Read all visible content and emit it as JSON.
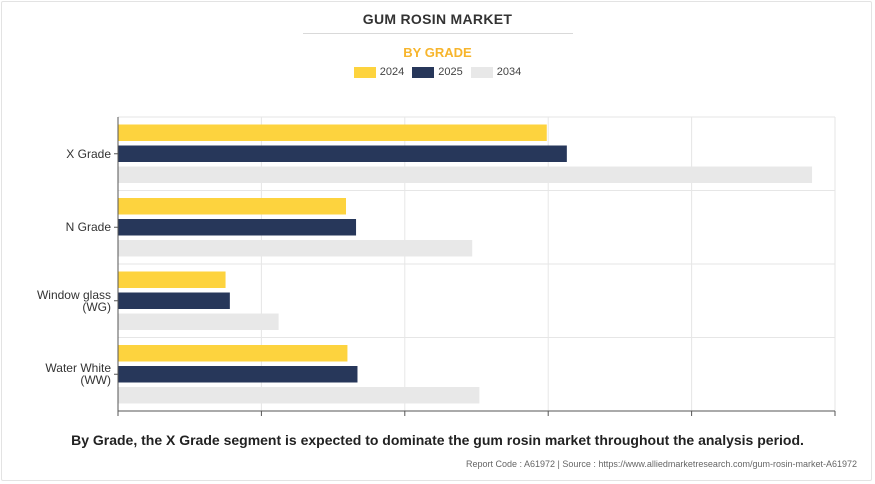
{
  "chart_data": {
    "type": "bar",
    "orientation": "horizontal",
    "title": "GUM ROSIN MARKET",
    "subtitle": "BY GRADE",
    "categories": [
      "X Grade",
      "N Grade",
      "Window glass (WG)",
      "Water White (WW)"
    ],
    "category_lines": [
      [
        "X Grade"
      ],
      [
        "N Grade"
      ],
      [
        "Window glass",
        "(WG)"
      ],
      [
        "Water White",
        "(WW)"
      ]
    ],
    "series": [
      {
        "name": "2024",
        "color": "#fdd33e",
        "values": [
          29.9,
          15.9,
          7.5,
          16.0
        ]
      },
      {
        "name": "2025",
        "color": "#27375a",
        "values": [
          31.3,
          16.6,
          7.8,
          16.7
        ]
      },
      {
        "name": "2034",
        "color": "#e8e8e8",
        "values": [
          48.4,
          24.7,
          11.2,
          25.2
        ]
      }
    ],
    "xlim": [
      0,
      50
    ],
    "xticks": [
      0,
      10,
      20,
      30,
      40,
      50
    ],
    "grid": true,
    "legend_position": "top-center",
    "xlabel": "",
    "ylabel": ""
  },
  "caption": "By Grade, the X Grade segment is expected to dominate the gum rosin market throughout the analysis period.",
  "source": "Report Code : A61972  |  Source : https://www.alliedmarketresearch.com/gum-rosin-market-A61972"
}
